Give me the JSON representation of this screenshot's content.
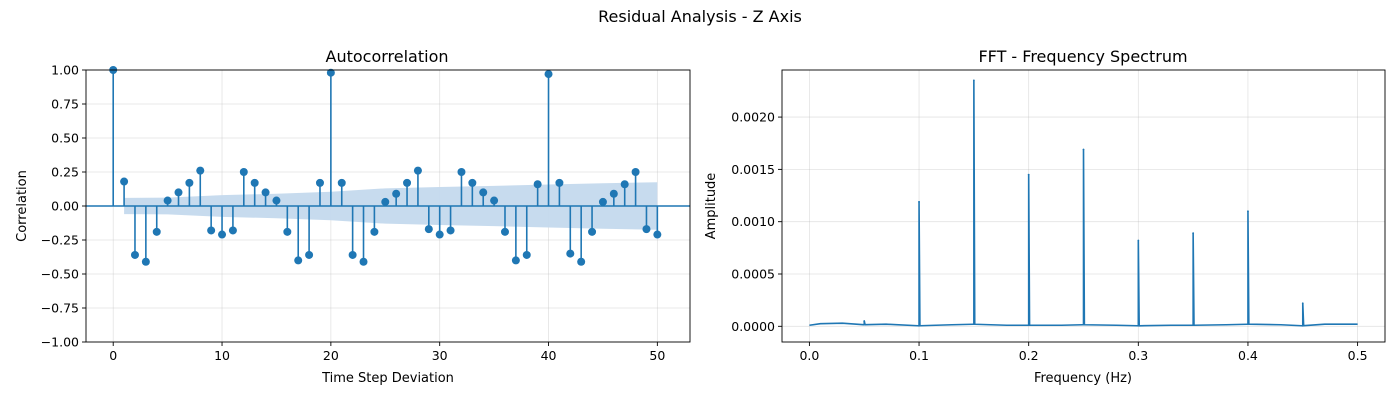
{
  "figure": {
    "suptitle": "Residual Analysis - Z Axis"
  },
  "chart_data": [
    {
      "type": "stem",
      "title": "Autocorrelation",
      "xlabel": "Time Step Deviation",
      "ylabel": "Correlation",
      "xlim": [
        -2.5,
        53
      ],
      "ylim": [
        -1.0,
        1.0
      ],
      "xticks": [
        0,
        10,
        20,
        30,
        40,
        50
      ],
      "xtick_labels": [
        "0",
        "10",
        "20",
        "30",
        "40",
        "50"
      ],
      "yticks": [
        -1.0,
        -0.75,
        -0.5,
        -0.25,
        0.0,
        0.25,
        0.5,
        0.75,
        1.0
      ],
      "ytick_labels": [
        "−1.00",
        "−0.75",
        "−0.50",
        "−0.25",
        "0.00",
        "0.25",
        "0.50",
        "0.75",
        "1.00"
      ],
      "grid": true,
      "color": "#1f77b4",
      "band_color": "#c4d9ed",
      "x": [
        0,
        1,
        2,
        3,
        4,
        5,
        6,
        7,
        8,
        9,
        10,
        11,
        12,
        13,
        14,
        15,
        16,
        17,
        18,
        19,
        20,
        21,
        22,
        23,
        24,
        25,
        26,
        27,
        28,
        29,
        30,
        31,
        32,
        33,
        34,
        35,
        36,
        37,
        38,
        39,
        40,
        41,
        42,
        43,
        44,
        45,
        46,
        47,
        48,
        49,
        50
      ],
      "values": [
        1.0,
        0.18,
        -0.36,
        -0.41,
        -0.19,
        0.04,
        0.1,
        0.17,
        0.26,
        -0.18,
        -0.21,
        -0.18,
        0.25,
        0.17,
        0.1,
        0.04,
        -0.19,
        -0.4,
        -0.36,
        0.17,
        0.98,
        0.17,
        -0.36,
        -0.41,
        -0.19,
        0.03,
        0.09,
        0.17,
        0.26,
        -0.17,
        -0.21,
        -0.18,
        0.25,
        0.17,
        0.1,
        0.04,
        -0.19,
        -0.4,
        -0.36,
        0.16,
        0.97,
        0.17,
        -0.35,
        -0.41,
        -0.19,
        0.03,
        0.09,
        0.16,
        0.25,
        -0.17,
        -0.21
      ],
      "confidence_band": {
        "x": [
          1,
          5,
          10,
          15,
          20,
          25,
          30,
          35,
          40,
          45,
          50
        ],
        "upper": [
          0.06,
          0.062,
          0.08,
          0.09,
          0.105,
          0.13,
          0.14,
          0.148,
          0.158,
          0.167,
          0.175
        ],
        "lower": [
          -0.06,
          -0.062,
          -0.08,
          -0.09,
          -0.105,
          -0.13,
          -0.14,
          -0.148,
          -0.158,
          -0.167,
          -0.175
        ]
      }
    },
    {
      "type": "line",
      "title": "FFT - Frequency Spectrum",
      "xlabel": "Frequency (Hz)",
      "ylabel": "Amplitude",
      "xlim": [
        -0.025,
        0.525
      ],
      "ylim": [
        -0.00015,
        0.00245
      ],
      "xticks": [
        0.0,
        0.1,
        0.2,
        0.3,
        0.4,
        0.5
      ],
      "xtick_labels": [
        "0.0",
        "0.1",
        "0.2",
        "0.3",
        "0.4",
        "0.5"
      ],
      "yticks": [
        0.0,
        0.0005,
        0.001,
        0.0015,
        0.002
      ],
      "ytick_labels": [
        "0.0000",
        "0.0005",
        "0.0010",
        "0.0015",
        "0.0020"
      ],
      "grid": true,
      "color": "#1f77b4",
      "baseline": {
        "x": [
          0.0,
          0.01,
          0.03,
          0.05,
          0.07,
          0.1,
          0.13,
          0.15,
          0.18,
          0.2,
          0.23,
          0.25,
          0.28,
          0.3,
          0.33,
          0.35,
          0.38,
          0.4,
          0.43,
          0.45,
          0.47,
          0.5
        ],
        "y": [
          1e-05,
          2.5e-05,
          3e-05,
          1.5e-05,
          2e-05,
          5e-06,
          1.5e-05,
          2e-05,
          1e-05,
          1e-05,
          1e-05,
          1.5e-05,
          1e-05,
          5e-06,
          1e-05,
          1e-05,
          1.5e-05,
          2e-05,
          1.5e-05,
          5e-06,
          2e-05,
          2e-05
        ]
      },
      "peaks": {
        "x": [
          0.05,
          0.1,
          0.15,
          0.2,
          0.25,
          0.3,
          0.35,
          0.4,
          0.45
        ],
        "y": [
          5e-05,
          0.00119,
          0.00235,
          0.00145,
          0.00169,
          0.00082,
          0.00089,
          0.0011,
          0.00022
        ]
      }
    }
  ]
}
